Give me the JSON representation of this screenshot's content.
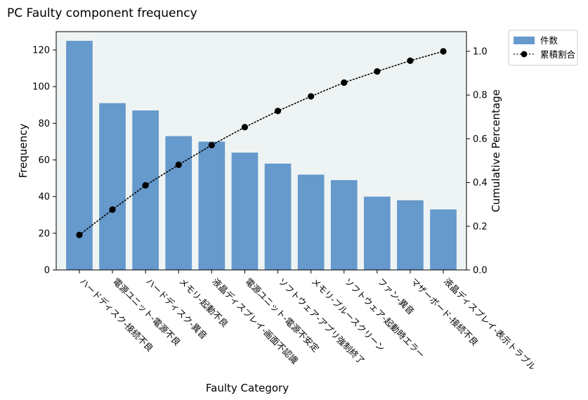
{
  "chart_data": {
    "type": "bar",
    "title": "PC Faulty component frequency",
    "xlabel": "Faulty Category",
    "ylabel": "Frequency",
    "y2label": "Cumulative Percentage",
    "categories": [
      "ハードディスク-接続不良",
      "電源ユニット-電源不良",
      "ハードディスク-異音",
      "メモリ-起動不良",
      "液晶ディスプレイ-画面不認識",
      "電源ユニット-電源不安定",
      "ソフトウェア-アプリ強制終了",
      "メモリ-ブルースクリーン",
      "ソフトウェア-起動時エラー",
      "ファン-異音",
      "マザーボード-接続不良",
      "液晶ディスプレイ-表示トラブル"
    ],
    "series": [
      {
        "name": "件数",
        "kind": "bar",
        "axis": "left",
        "color": "#6699cc",
        "values": [
          125,
          91,
          87,
          73,
          70,
          64,
          58,
          52,
          49,
          40,
          38,
          33
        ]
      },
      {
        "name": "累積割合",
        "kind": "line",
        "axis": "right",
        "color": "#000000",
        "style": "dotted with circle markers",
        "values": [
          0.16,
          0.276,
          0.387,
          0.481,
          0.571,
          0.653,
          0.727,
          0.794,
          0.857,
          0.908,
          0.957,
          1.0
        ]
      }
    ],
    "ylim": [
      0,
      130
    ],
    "y2lim": [
      0,
      1.09
    ],
    "yticks": [
      0,
      20,
      40,
      60,
      80,
      100,
      120
    ],
    "y2ticks": [
      "0.0",
      "0.2",
      "0.4",
      "0.6",
      "0.8",
      "1.0"
    ],
    "plot_background": "#eef4f4",
    "grid": false,
    "legend_position": "outside top-right"
  }
}
